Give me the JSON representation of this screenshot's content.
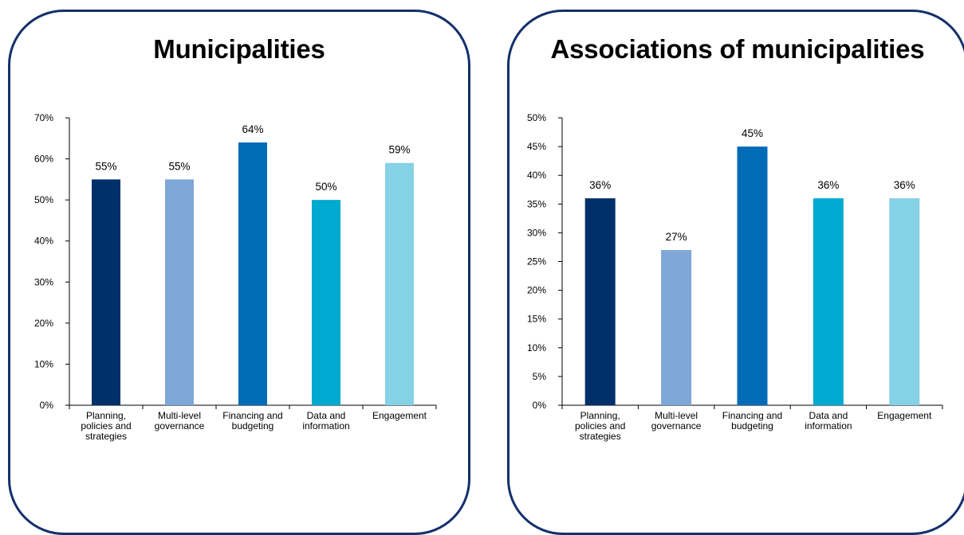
{
  "panels": [
    {
      "title": "Municipalities"
    },
    {
      "title": "Associations of municipalities"
    }
  ],
  "chart_data": [
    {
      "type": "bar",
      "title": "Municipalities",
      "categories": [
        [
          "Planning,",
          "policies and",
          "strategies"
        ],
        [
          "Multi-level",
          "governance"
        ],
        [
          "Financing and",
          "budgeting"
        ],
        [
          "Data and",
          "information"
        ],
        [
          "Engagement"
        ]
      ],
      "values": [
        55,
        55,
        64,
        50,
        59
      ],
      "data_labels": [
        "55%",
        "55%",
        "64%",
        "50%",
        "59%"
      ],
      "ylim": [
        0,
        70
      ],
      "yticks": [
        0,
        10,
        20,
        30,
        40,
        50,
        60,
        70
      ],
      "ytick_labels": [
        "0%",
        "10%",
        "20%",
        "30%",
        "40%",
        "50%",
        "60%",
        "70%"
      ],
      "colors": [
        "#00306a",
        "#7fa7d8",
        "#006bb6",
        "#00a9cf",
        "#85d1e5"
      ],
      "grid": false,
      "legend": "none"
    },
    {
      "type": "bar",
      "title": "Associations of municipalities",
      "categories": [
        [
          "Planning,",
          "policies and",
          "strategies"
        ],
        [
          "Multi-level",
          "governance"
        ],
        [
          "Financing and",
          "budgeting"
        ],
        [
          "Data and",
          "information"
        ],
        [
          "Engagement"
        ]
      ],
      "values": [
        36,
        27,
        45,
        36,
        36
      ],
      "data_labels": [
        "36%",
        "27%",
        "45%",
        "36%",
        "36%"
      ],
      "ylim": [
        0,
        50
      ],
      "yticks": [
        0,
        5,
        10,
        15,
        20,
        25,
        30,
        35,
        40,
        45,
        50
      ],
      "ytick_labels": [
        "0%",
        "5%",
        "10%",
        "15%",
        "20%",
        "25%",
        "30%",
        "35%",
        "40%",
        "45%",
        "50%"
      ],
      "colors": [
        "#00306a",
        "#7fa7d8",
        "#006bb6",
        "#00a9cf",
        "#85d1e5"
      ],
      "grid": false,
      "legend": "none"
    }
  ]
}
